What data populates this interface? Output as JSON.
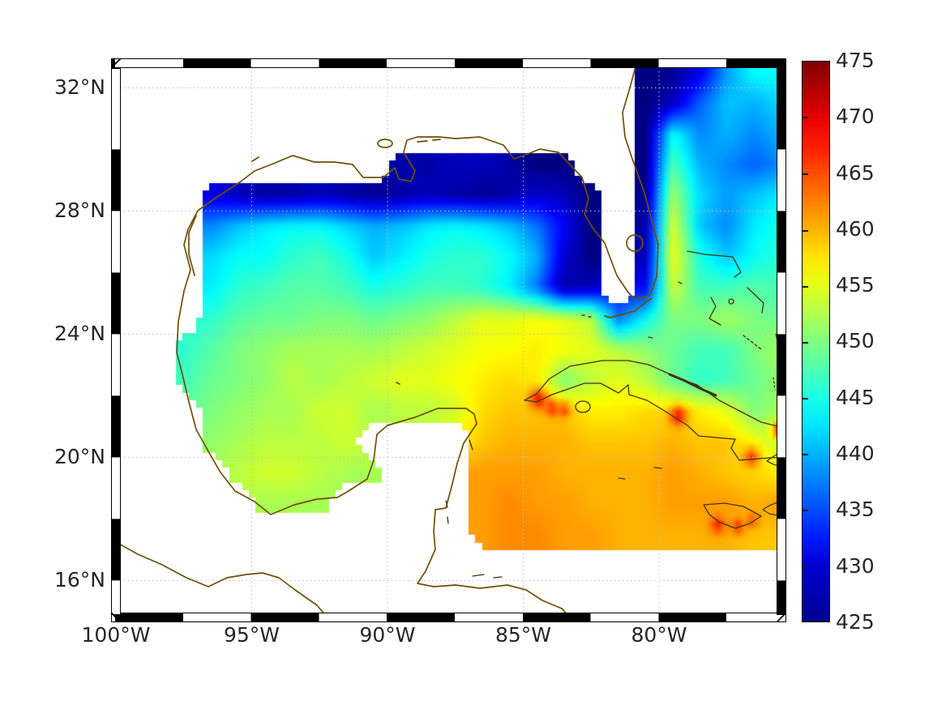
{
  "figure": {
    "background": "#ffffff",
    "text_color": "#262626"
  },
  "axes": {
    "x_ticks": [
      "100°W",
      "95°W",
      "90°W",
      "85°W",
      "80°W"
    ],
    "y_ticks": [
      "32°N",
      "28°N",
      "24°N",
      "20°N",
      "16°N"
    ],
    "grid_lons": [
      -95,
      -90,
      -85,
      -80
    ],
    "grid_lats": [
      16,
      20,
      24,
      28,
      32
    ],
    "gridline_style": "dotted"
  },
  "colorbar": {
    "min": 425,
    "max": 475,
    "tick_step": 5,
    "colormap": "jet",
    "ticks_top_to_bottom": [
      "475",
      "470",
      "465",
      "460",
      "455",
      "450",
      "445",
      "440",
      "435",
      "430",
      "425"
    ]
  },
  "chart_data": {
    "type": "heatmap",
    "colormap": "jet",
    "value_range": [
      425,
      475
    ],
    "lon_range": [
      -100,
      -75.5
    ],
    "lat_range": [
      14.8,
      32.8
    ],
    "grid_lon_start": -99.5,
    "grid_lon_step": 1,
    "grid_lat_start": 32.5,
    "grid_lat_step": -1,
    "no_data_color": "#ffffff",
    "values": [
      [
        null,
        null,
        null,
        null,
        null,
        null,
        null,
        null,
        null,
        null,
        null,
        null,
        null,
        null,
        null,
        null,
        null,
        null,
        null,
        425,
        426,
        430,
        439,
        444,
        444
      ],
      [
        null,
        null,
        null,
        null,
        null,
        null,
        null,
        null,
        null,
        null,
        null,
        null,
        null,
        null,
        null,
        null,
        null,
        null,
        null,
        425,
        428,
        436,
        441,
        440,
        442
      ],
      [
        null,
        null,
        null,
        null,
        null,
        null,
        null,
        null,
        null,
        null,
        null,
        null,
        null,
        null,
        null,
        null,
        null,
        null,
        null,
        425,
        444,
        438,
        440,
        438,
        440
      ],
      [
        null,
        null,
        null,
        null,
        null,
        null,
        null,
        null,
        null,
        null,
        427,
        427,
        428,
        428,
        427,
        425,
        425,
        null,
        null,
        425,
        448,
        440,
        438,
        436,
        438
      ],
      [
        null,
        null,
        null,
        430,
        428,
        427,
        427,
        428,
        427,
        426,
        427,
        428,
        427,
        426,
        427,
        429,
        428,
        425,
        null,
        426,
        452,
        442,
        439,
        441,
        443
      ],
      [
        null,
        null,
        null,
        438,
        441,
        443,
        444,
        444,
        442,
        440,
        441,
        443,
        444,
        443,
        441,
        437,
        431,
        425,
        null,
        427,
        455,
        441,
        438,
        443,
        445
      ],
      [
        null,
        null,
        null,
        442,
        444,
        444,
        446,
        447,
        445,
        441,
        443,
        445,
        446,
        446,
        444,
        440,
        429,
        425,
        null,
        428,
        456,
        445,
        441,
        444,
        446
      ],
      [
        null,
        null,
        null,
        443,
        446,
        447,
        448,
        448,
        447,
        445,
        446,
        447,
        447,
        446,
        443,
        437,
        427,
        428,
        null,
        431,
        454,
        447,
        447,
        448,
        447
      ],
      [
        null,
        null,
        null,
        446,
        448,
        449,
        449,
        450,
        450,
        449,
        450,
        451,
        453,
        455,
        455,
        456,
        455,
        453,
        437,
        444,
        450,
        450,
        452,
        450,
        449
      ],
      [
        null,
        null,
        446,
        448,
        450,
        451,
        452,
        452,
        452,
        452,
        453,
        454,
        455,
        456,
        456,
        457,
        456,
        455,
        453,
        451,
        449,
        447,
        447,
        450,
        452
      ],
      [
        null,
        null,
        447,
        449,
        450,
        451,
        453,
        452,
        453,
        454,
        455,
        455,
        456,
        457,
        458,
        457,
        450,
        453,
        455,
        453,
        449,
        446,
        447,
        449,
        451
      ],
      [
        null,
        null,
        null,
        450,
        451,
        452,
        452,
        454,
        454,
        452,
        453,
        453,
        454,
        458,
        459,
        459,
        459,
        457,
        457,
        458,
        458,
        457,
        455,
        450,
        452
      ],
      [
        null,
        null,
        null,
        451,
        452,
        453,
        453,
        453,
        454,
        null,
        null,
        null,
        null,
        459,
        460,
        460,
        460,
        459,
        459,
        459,
        460,
        459,
        459,
        456,
        453
      ],
      [
        null,
        null,
        null,
        null,
        453,
        454,
        454,
        453,
        452,
        452,
        null,
        null,
        null,
        461,
        461,
        461,
        460,
        460,
        460,
        460,
        461,
        460,
        459,
        458,
        457
      ],
      [
        null,
        null,
        null,
        null,
        null,
        452,
        452,
        452,
        null,
        null,
        null,
        null,
        null,
        461,
        462,
        461,
        461,
        460,
        460,
        460,
        461,
        461,
        461,
        460,
        461
      ],
      [
        null,
        null,
        null,
        null,
        null,
        null,
        null,
        null,
        null,
        null,
        null,
        null,
        null,
        461,
        462,
        462,
        461,
        461,
        460,
        460,
        460,
        460,
        460,
        459,
        459
      ],
      [
        null,
        null,
        null,
        null,
        null,
        null,
        null,
        null,
        null,
        null,
        null,
        null,
        null,
        null,
        null,
        null,
        null,
        null,
        null,
        null,
        null,
        null,
        null,
        null,
        null
      ],
      [
        null,
        null,
        null,
        null,
        null,
        null,
        null,
        null,
        null,
        null,
        null,
        null,
        null,
        null,
        null,
        null,
        null,
        null,
        null,
        null,
        null,
        null,
        null,
        null,
        null
      ]
    ],
    "hotspots": [
      {
        "lon": -84.45,
        "lat": 21.9,
        "value": 469,
        "radius": 0.3
      },
      {
        "lon": -83.95,
        "lat": 21.6,
        "value": 467,
        "radius": 0.25
      },
      {
        "lon": -83.5,
        "lat": 21.55,
        "value": 466,
        "radius": 0.22
      },
      {
        "lon": -79.3,
        "lat": 21.35,
        "value": 469,
        "radius": 0.3
      },
      {
        "lon": -76.6,
        "lat": 20.0,
        "value": 467,
        "radius": 0.28
      },
      {
        "lon": -75.55,
        "lat": 20.9,
        "value": 472,
        "radius": 0.25
      },
      {
        "lon": -77.85,
        "lat": 17.8,
        "value": 468,
        "radius": 0.25
      },
      {
        "lon": -77.1,
        "lat": 17.75,
        "value": 467,
        "radius": 0.22
      },
      {
        "lon": -76.55,
        "lat": 17.95,
        "value": 466,
        "radius": 0.2
      },
      {
        "lon": -87.4,
        "lat": 19.0,
        "value": 465,
        "radius": 0.2
      },
      {
        "lon": -87.4,
        "lat": 18.3,
        "value": 466,
        "radius": 0.2
      },
      {
        "lon": -87.35,
        "lat": 20.0,
        "value": 463,
        "radius": 0.18
      }
    ],
    "coastline_colors": {
      "gulf": "#6f4f05",
      "caribbean": "#453309"
    },
    "frame_style": "checkered-black-white"
  }
}
